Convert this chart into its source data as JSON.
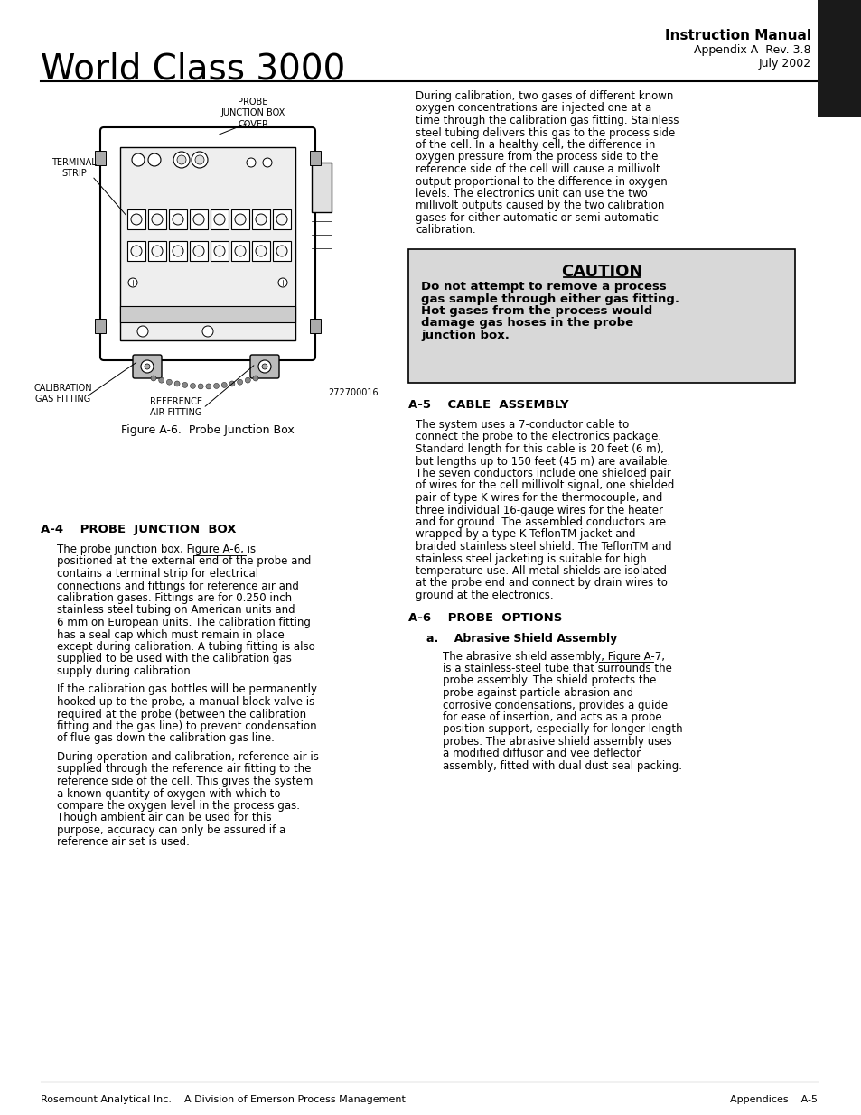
{
  "page_bg": "#ffffff",
  "header_title": "Instruction Manual",
  "header_sub1": "Appendix A  Rev. 3.8",
  "header_sub2": "July 2002",
  "page_main_title": "World Class 3000",
  "footer_left": "Rosemount Analytical Inc.    A Division of Emerson Process Management",
  "footer_right": "Appendices    A-5",
  "tab_color": "#1a1a1a",
  "caution_bg": "#d8d8d8",
  "caution_title": "CAUTION",
  "caution_text_lines": [
    "Do not attempt to remove a process",
    "gas sample through either gas fitting.",
    "Hot gases from the process would",
    "damage gas hoses in the probe",
    "junction box."
  ],
  "divider_color": "#000000",
  "text_color": "#000000"
}
